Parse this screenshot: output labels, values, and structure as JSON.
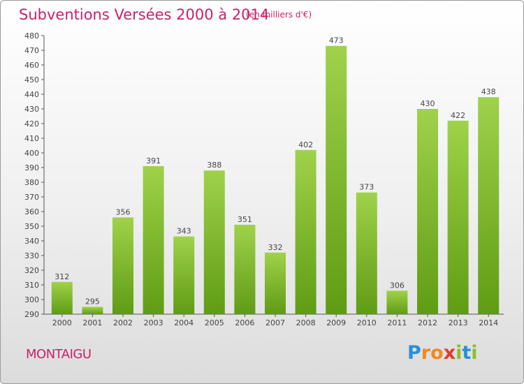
{
  "title": "Subventions Versées 2000 à 2014",
  "subtitle": "(en milliers d'€)",
  "commune": "MONTAIGU",
  "logo": {
    "letters": [
      "P",
      "r",
      "o",
      "x",
      "i",
      "t",
      "i"
    ],
    "colors": [
      "#2a8fd8",
      "#f08a1c",
      "#f08a1c",
      "#e23b2a",
      "#8bbf2a",
      "#2a8fd8",
      "#8bbf2a"
    ]
  },
  "colors": {
    "bar": "#7ab82a",
    "bar_light": "#9fd24a",
    "title": "#c8226a"
  },
  "chart_data": {
    "type": "bar",
    "categories": [
      "2000",
      "2001",
      "2002",
      "2003",
      "2004",
      "2005",
      "2006",
      "2007",
      "2008",
      "2009",
      "2010",
      "2011",
      "2012",
      "2013",
      "2014"
    ],
    "values": [
      312,
      295,
      356,
      391,
      343,
      388,
      351,
      332,
      402,
      473,
      373,
      306,
      430,
      422,
      438
    ],
    "data_labels": [
      "312",
      "295",
      "356",
      "391",
      "343",
      "388",
      "351",
      "332",
      "402",
      "473",
      "373",
      "306",
      "430",
      "422",
      "438"
    ],
    "ylim": [
      290,
      480
    ],
    "yticks": [
      "290",
      "300",
      "310",
      "320",
      "330",
      "340",
      "350",
      "360",
      "370",
      "380",
      "390",
      "400",
      "410",
      "420",
      "430",
      "440",
      "450",
      "460",
      "470",
      "480"
    ],
    "grid": false
  }
}
